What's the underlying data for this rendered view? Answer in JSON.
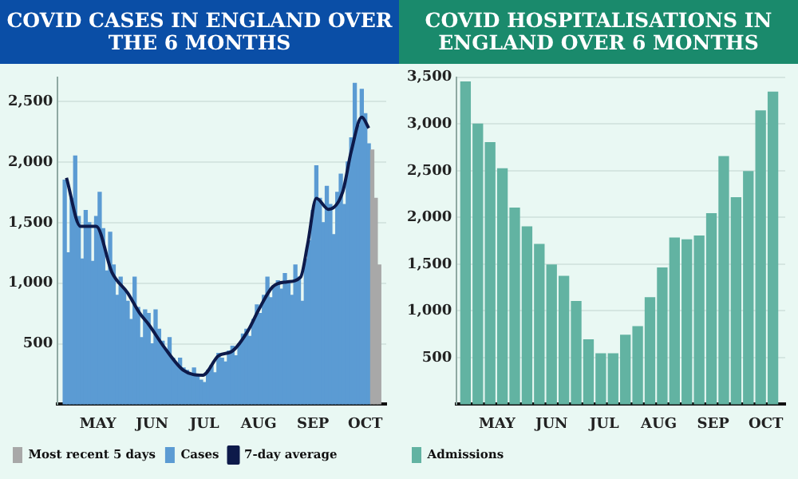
{
  "chart_data": [
    {
      "type": "bar",
      "title": "COVID CASES IN ENGLAND OVER THE 6 MONTHS",
      "xlim": [
        "--04-08",
        "--10-13"
      ],
      "xticks": [
        {
          "value": "--05-01",
          "label": "MAY"
        },
        {
          "value": "--06-01",
          "label": "JUN"
        },
        {
          "value": "--07-01",
          "label": "JUL"
        },
        {
          "value": "--08-01",
          "label": "AUG"
        },
        {
          "value": "--09-01",
          "label": "SEP"
        },
        {
          "value": "--10-01",
          "label": "OCT"
        }
      ],
      "ylim": [
        0,
        2700
      ],
      "yticks": [
        {
          "value": 500,
          "label": "500"
        },
        {
          "value": 1000,
          "label": "1,000"
        },
        {
          "value": 1500,
          "label": "1,500"
        },
        {
          "value": 2000,
          "label": "2,000"
        },
        {
          "value": 2500,
          "label": "2,500"
        }
      ],
      "grid": "y",
      "legend": "bottom",
      "series": [
        {
          "name": "Most recent 5 days",
          "color": "#a8a8a8",
          "x": [
            "--10-05",
            "--10-07",
            "--10-09"
          ],
          "values": [
            2100,
            1700,
            1150
          ]
        },
        {
          "name": "Cases",
          "color": "#5b9bd3",
          "x": [
            "--04-12",
            "--04-14",
            "--04-16",
            "--04-18",
            "--04-20",
            "--04-22",
            "--04-24",
            "--04-26",
            "--04-28",
            "--04-30",
            "--05-02",
            "--05-04",
            "--05-06",
            "--05-08",
            "--05-10",
            "--05-12",
            "--05-14",
            "--05-16",
            "--05-18",
            "--05-20",
            "--05-22",
            "--05-24",
            "--05-26",
            "--05-28",
            "--05-30",
            "--06-01",
            "--06-03",
            "--06-05",
            "--06-07",
            "--06-09",
            "--06-11",
            "--06-13",
            "--06-15",
            "--06-17",
            "--06-19",
            "--06-21",
            "--06-23",
            "--06-25",
            "--06-27",
            "--06-29",
            "--07-01",
            "--07-03",
            "--07-05",
            "--07-07",
            "--07-09",
            "--07-11",
            "--07-13",
            "--07-15",
            "--07-17",
            "--07-19",
            "--07-21",
            "--07-23",
            "--07-25",
            "--07-27",
            "--07-29",
            "--07-31",
            "--08-02",
            "--08-04",
            "--08-06",
            "--08-08",
            "--08-10",
            "--08-12",
            "--08-14",
            "--08-16",
            "--08-18",
            "--08-20",
            "--08-22",
            "--08-24",
            "--08-26",
            "--08-28",
            "--08-30",
            "--09-01",
            "--09-03",
            "--09-05",
            "--09-07",
            "--09-09",
            "--09-11",
            "--09-13",
            "--09-15",
            "--09-17",
            "--09-19",
            "--09-21",
            "--09-23",
            "--09-25",
            "--09-27",
            "--09-29",
            "--10-01",
            "--10-03"
          ],
          "values": [
            1850,
            1250,
            1700,
            2050,
            1550,
            1200,
            1600,
            1500,
            1180,
            1550,
            1750,
            1450,
            1100,
            1420,
            1150,
            900,
            1050,
            950,
            850,
            700,
            1050,
            800,
            550,
            780,
            750,
            500,
            780,
            620,
            520,
            450,
            550,
            380,
            330,
            380,
            300,
            280,
            250,
            300,
            230,
            200,
            180,
            280,
            320,
            260,
            420,
            380,
            350,
            440,
            480,
            400,
            500,
            580,
            620,
            560,
            700,
            820,
            750,
            900,
            1050,
            880,
            980,
            1020,
            950,
            1080,
            1000,
            900,
            1150,
            1050,
            850,
            1200,
            1350,
            1600,
            1970,
            1700,
            1500,
            1800,
            1650,
            1400,
            1750,
            1900,
            1650,
            2000,
            2200,
            2650,
            2300,
            2600,
            2400,
            2150
          ]
        },
        {
          "name": "7-day average",
          "type": "line",
          "color": "#0d1a4a",
          "x": [
            "--04-13",
            "--04-21",
            "--04-30",
            "--05-09",
            "--05-18",
            "--05-25",
            "--05-30",
            "--06-08",
            "--06-19",
            "--06-30",
            "--07-09",
            "--07-17",
            "--07-26",
            "--08-01",
            "--08-09",
            "--08-17",
            "--08-25",
            "--08-29",
            "--09-03",
            "--09-10",
            "--09-18",
            "--09-23",
            "--09-29",
            "--10-03"
          ],
          "values": [
            1870,
            1470,
            1470,
            1090,
            920,
            750,
            660,
            470,
            280,
            240,
            400,
            440,
            610,
            780,
            970,
            1010,
            1050,
            1320,
            1700,
            1610,
            1750,
            2090,
            2370,
            2280
          ]
        }
      ]
    },
    {
      "type": "bar",
      "title": "COVID HOSPITALISATIONS IN ENGLAND OVER 6 MONTHS",
      "xlim": [
        "--04-08",
        "--10-12"
      ],
      "xticks": [
        {
          "value": "--05-01",
          "label": "MAY"
        },
        {
          "value": "--06-01",
          "label": "JUN"
        },
        {
          "value": "--07-01",
          "label": "JUL"
        },
        {
          "value": "--08-01",
          "label": "AUG"
        },
        {
          "value": "--09-01",
          "label": "SEP"
        },
        {
          "value": "--10-01",
          "label": "OCT"
        }
      ],
      "ylim": [
        0,
        3500
      ],
      "yticks": [
        {
          "value": 500,
          "label": "500"
        },
        {
          "value": 1000,
          "label": "1,000"
        },
        {
          "value": 1500,
          "label": "1,500"
        },
        {
          "value": 2000,
          "label": "2,000"
        },
        {
          "value": 2500,
          "label": "2,500"
        },
        {
          "value": 3000,
          "label": "3,000"
        },
        {
          "value": 3500,
          "label": "3,500"
        }
      ],
      "grid": "y",
      "legend": "bottom",
      "series": [
        {
          "name": "Admissions",
          "color": "#62b3a2",
          "x": [
            "--04-13",
            "--04-20",
            "--04-27",
            "--05-04",
            "--05-11",
            "--05-18",
            "--05-25",
            "--06-01",
            "--06-08",
            "--06-15",
            "--06-22",
            "--06-29",
            "--07-06",
            "--07-13",
            "--07-20",
            "--07-27",
            "--08-03",
            "--08-10",
            "--08-17",
            "--08-24",
            "--08-31",
            "--09-07",
            "--09-14",
            "--09-21",
            "--09-28",
            "--10-05"
          ],
          "values": [
            3450,
            3000,
            2800,
            2520,
            2100,
            1900,
            1710,
            1490,
            1370,
            1100,
            690,
            540,
            540,
            740,
            830,
            1140,
            1460,
            1780,
            1760,
            1800,
            2040,
            2650,
            2210,
            2490,
            3140,
            3340
          ]
        }
      ]
    }
  ]
}
